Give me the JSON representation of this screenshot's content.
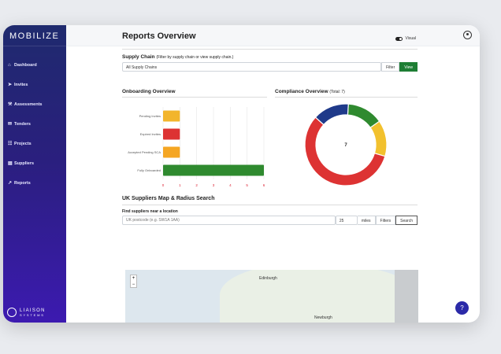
{
  "app": {
    "brand": "MOBILIZE",
    "footer_brand": "LIAISON",
    "footer_sub": "SYSTEMS"
  },
  "sidebar": {
    "items": [
      {
        "label": "Dashboard",
        "icon": "home-icon"
      },
      {
        "label": "Invites",
        "icon": "send-icon"
      },
      {
        "label": "Assessments",
        "icon": "tools-icon"
      },
      {
        "label": "Tenders",
        "icon": "envelope-icon"
      },
      {
        "label": "Projects",
        "icon": "sitemap-icon"
      },
      {
        "label": "Suppliers",
        "icon": "truck-icon"
      },
      {
        "label": "Reports",
        "icon": "chart-icon"
      }
    ]
  },
  "page": {
    "title": "Reports Overview",
    "visual_label": "Visual"
  },
  "supply_chain": {
    "label": "Supply Chain",
    "hint": "(Filter by supply chain or view supply chain.)",
    "selected": "All Supply Chains",
    "filter_btn": "Filter",
    "view_btn": "View"
  },
  "onboarding": {
    "title": "Onboarding Overview",
    "chart_data": {
      "type": "bar",
      "orientation": "horizontal",
      "categories": [
        "Pending Invites",
        "Expired Invites",
        "Accepted Pending SCA",
        "Fully Onboarded"
      ],
      "values": [
        1,
        1,
        1,
        6
      ],
      "colors": [
        "#f2b52c",
        "#dd3333",
        "#f5a623",
        "#2f8a2f"
      ],
      "xlim": [
        0,
        6
      ],
      "xticks": [
        "0",
        "1",
        "2",
        "3",
        "4",
        "5",
        "6"
      ]
    }
  },
  "compliance": {
    "title": "Compliance Overview",
    "total_label": "(Total: 7)",
    "center_value": "7",
    "chart_data": {
      "type": "pie",
      "donut": true,
      "slices": [
        {
          "color": "#2f8a2f",
          "value": 1
        },
        {
          "color": "#f2c12e",
          "value": 1
        },
        {
          "color": "#dd3333",
          "value": 4
        },
        {
          "color": "#1f3a8a",
          "value": 1
        }
      ]
    }
  },
  "map_section": {
    "title": "UK Suppliers Map & Radius Search",
    "find_label": "Find suppliers near a location",
    "postcode_placeholder": "UK postcode (e.g. SW1A 1AA)",
    "radius_value": "25",
    "radius_unit": "miles",
    "filters_btn": "Filters",
    "search_btn": "Search",
    "city_label": "Edinburgh",
    "city_label2": "Newburgh",
    "zoom_in": "+",
    "zoom_out": "−"
  },
  "help_label": "?"
}
